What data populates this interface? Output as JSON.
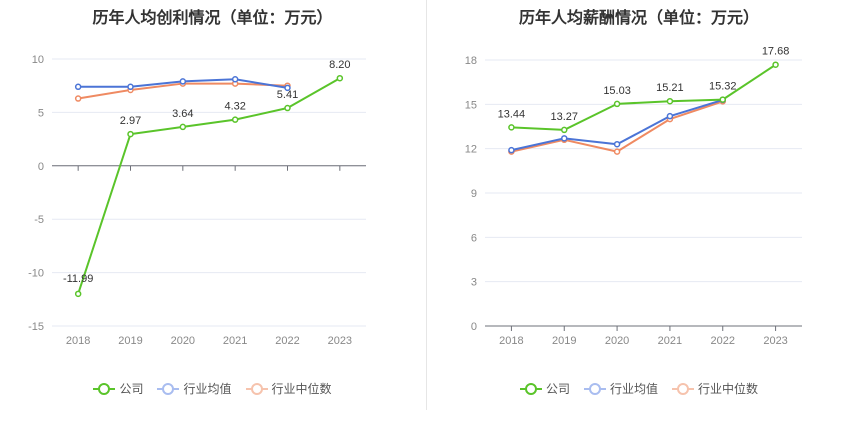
{
  "chart_data": [
    {
      "type": "line",
      "title": "历年人均创利情况（单位：万元）",
      "categories": [
        "2018",
        "2019",
        "2020",
        "2021",
        "2022",
        "2023"
      ],
      "ylim": [
        -15,
        10
      ],
      "yticks": [
        -15,
        -10,
        -5,
        0,
        5,
        10
      ],
      "ytick_labels": [
        "-15",
        "-10",
        "-5",
        "0",
        "5",
        "10"
      ],
      "series": [
        {
          "name": "公司",
          "color": "#5ac42a",
          "values": [
            -11.99,
            2.97,
            3.64,
            4.32,
            5.41,
            8.2
          ],
          "labels": [
            "-11.99",
            "2.97",
            "3.64",
            "4.32",
            "5.41",
            "8.20"
          ]
        },
        {
          "name": "行业均值",
          "color": "#4b74d6",
          "values": [
            7.4,
            7.4,
            7.9,
            8.1,
            7.3,
            null
          ]
        },
        {
          "name": "行业中位数",
          "color": "#ef8a62",
          "values": [
            6.3,
            7.1,
            7.7,
            7.7,
            7.5,
            null
          ]
        }
      ],
      "legend": [
        "公司",
        "行业均值",
        "行业中位数"
      ]
    },
    {
      "type": "line",
      "title": "历年人均薪酬情况（单位：万元）",
      "categories": [
        "2018",
        "2019",
        "2020",
        "2021",
        "2022",
        "2023"
      ],
      "ylim": [
        0,
        18
      ],
      "yticks": [
        0,
        3,
        6,
        9,
        12,
        15,
        18
      ],
      "ytick_labels": [
        "0",
        "3",
        "6",
        "9",
        "12",
        "15",
        "18"
      ],
      "series": [
        {
          "name": "公司",
          "color": "#5ac42a",
          "values": [
            13.44,
            13.27,
            15.03,
            15.21,
            15.32,
            17.68
          ],
          "labels": [
            "13.44",
            "13.27",
            "15.03",
            "15.21",
            "15.32",
            "17.68"
          ]
        },
        {
          "name": "行业均值",
          "color": "#4b74d6",
          "values": [
            11.9,
            12.7,
            12.3,
            14.2,
            15.3,
            null
          ]
        },
        {
          "name": "行业中位数",
          "color": "#ef8a62",
          "values": [
            11.8,
            12.6,
            11.8,
            14.0,
            15.2,
            null
          ]
        }
      ],
      "legend": [
        "公司",
        "行业均值",
        "行业中位数"
      ]
    }
  ]
}
